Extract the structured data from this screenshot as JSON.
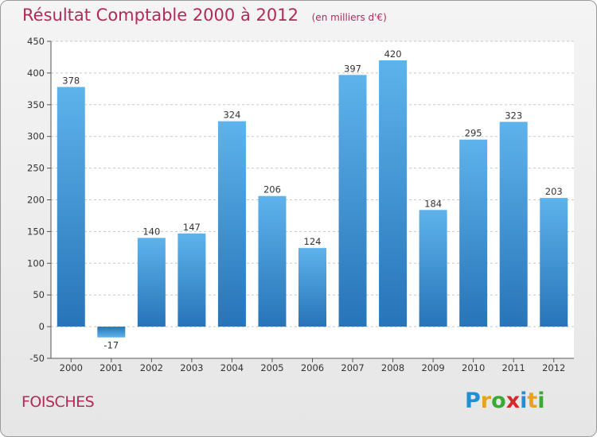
{
  "chart_data": {
    "type": "bar",
    "title": "Résultat Comptable 2000 à 2012",
    "subtitle": "(en milliers d'€)",
    "categories": [
      "2000",
      "2001",
      "2002",
      "2003",
      "2004",
      "2005",
      "2006",
      "2007",
      "2008",
      "2009",
      "2010",
      "2011",
      "2012"
    ],
    "values": [
      378,
      -17,
      140,
      147,
      324,
      206,
      124,
      397,
      420,
      184,
      295,
      323,
      203
    ],
    "value_labels": [
      "378",
      "-17",
      "140",
      "147",
      "324",
      "206",
      "124",
      "397",
      "420",
      "184",
      "295",
      "323",
      "203"
    ],
    "ylim": [
      -50,
      450
    ],
    "yticks": [
      -50,
      0,
      50,
      100,
      150,
      200,
      250,
      300,
      350,
      400,
      450
    ],
    "ytick_labels": [
      "-50",
      "0",
      "50",
      "100",
      "150",
      "200",
      "250",
      "300",
      "350",
      "400",
      "450"
    ],
    "grid": true,
    "xlabel": "",
    "ylabel": "",
    "bar_color": "#3d93d6"
  },
  "commune": "FOISCHES",
  "logo": {
    "text": "Proxiti",
    "letters": [
      {
        "ch": "P",
        "color": "#1f8fd6"
      },
      {
        "ch": "r",
        "color": "#e8a21c"
      },
      {
        "ch": "o",
        "color": "#3aaa35"
      },
      {
        "ch": "x",
        "color": "#d62a2a"
      },
      {
        "ch": "i",
        "color": "#1f8fd6"
      },
      {
        "ch": "t",
        "color": "#e8a21c"
      },
      {
        "ch": "i",
        "color": "#3aaa35"
      }
    ]
  }
}
